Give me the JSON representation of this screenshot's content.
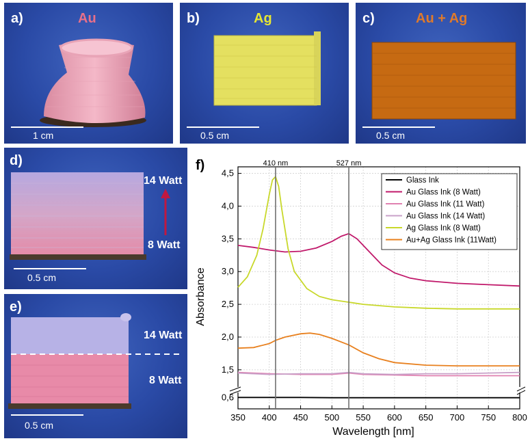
{
  "panels": {
    "a": {
      "label": "a)",
      "material": "Au",
      "material_color": "#e8708a",
      "scale": "1 cm"
    },
    "b": {
      "label": "b)",
      "material": "Ag",
      "material_color": "#e6e633",
      "scale": "0.5 cm"
    },
    "c": {
      "label": "c)",
      "material": "Au + Ag",
      "material_color": "#e07a2a",
      "scale": "0.5 cm"
    },
    "d": {
      "label": "d)",
      "top_watt": "14 Watt",
      "bottom_watt": "8 Watt",
      "scale": "0.5 cm"
    },
    "e": {
      "label": "e)",
      "top_watt": "14 Watt",
      "bottom_watt": "8 Watt",
      "scale": "0.5 cm"
    }
  },
  "chart_data": {
    "panel_label": "f)",
    "type": "line",
    "xlabel": "Wavelength [nm]",
    "ylabel": "Absorbance",
    "xlim": [
      350,
      800
    ],
    "xticks": [
      350,
      400,
      450,
      500,
      550,
      600,
      650,
      700,
      750,
      800
    ],
    "yticks": [
      0.6,
      1.5,
      2.0,
      2.5,
      3.0,
      3.5,
      4.0,
      4.5
    ],
    "ytick_labels": [
      "0,6",
      "1,5",
      "2,0",
      "2,5",
      "3,0",
      "3,5",
      "4,0",
      "4,5"
    ],
    "axis_break": "between 0.6 and 1.5",
    "vlines": [
      {
        "x": 410,
        "label": "410 nm"
      },
      {
        "x": 527,
        "label": "527 nm"
      }
    ],
    "series": [
      {
        "name": "Glass Ink",
        "color": "#000000",
        "x": [
          350,
          400,
          450,
          500,
          550,
          600,
          650,
          700,
          750,
          800
        ],
        "y": [
          0.6,
          0.6,
          0.6,
          0.59,
          0.59,
          0.59,
          0.59,
          0.59,
          0.59,
          0.59
        ]
      },
      {
        "name": "Au Glass Ink (8 Watt)",
        "color": "#c0186a",
        "x": [
          350,
          375,
          400,
          425,
          450,
          475,
          500,
          515,
          527,
          540,
          560,
          580,
          600,
          625,
          650,
          700,
          750,
          800
        ],
        "y": [
          3.4,
          3.37,
          3.33,
          3.3,
          3.31,
          3.36,
          3.46,
          3.54,
          3.58,
          3.5,
          3.3,
          3.1,
          2.98,
          2.9,
          2.86,
          2.82,
          2.8,
          2.78
        ]
      },
      {
        "name": "Au Glass Ink (11 Watt)",
        "color": "#e080b0",
        "x": [
          350,
          400,
          450,
          500,
          527,
          550,
          600,
          650,
          700,
          750,
          800
        ],
        "y": [
          1.46,
          1.44,
          1.43,
          1.43,
          1.45,
          1.43,
          1.42,
          1.41,
          1.41,
          1.41,
          1.41
        ]
      },
      {
        "name": "Au Glass Ink (14 Watt)",
        "color": "#c8a0c8",
        "x": [
          350,
          400,
          450,
          500,
          527,
          550,
          600,
          650,
          700,
          750,
          800
        ],
        "y": [
          1.45,
          1.43,
          1.44,
          1.44,
          1.46,
          1.44,
          1.43,
          1.44,
          1.44,
          1.45,
          1.46
        ]
      },
      {
        "name": "Ag Glass Ink (8 Watt)",
        "color": "#c8d82a",
        "x": [
          350,
          365,
          380,
          390,
          400,
          405,
          410,
          415,
          420,
          430,
          440,
          460,
          480,
          500,
          550,
          600,
          650,
          700,
          750,
          800
        ],
        "y": [
          2.76,
          2.92,
          3.25,
          3.65,
          4.18,
          4.4,
          4.45,
          4.3,
          3.95,
          3.35,
          3.0,
          2.74,
          2.62,
          2.57,
          2.5,
          2.46,
          2.44,
          2.43,
          2.43,
          2.43
        ]
      },
      {
        "name": "Au+Ag Glass Ink (11Watt)",
        "color": "#e8801e",
        "x": [
          350,
          375,
          400,
          410,
          425,
          450,
          465,
          480,
          500,
          527,
          550,
          575,
          600,
          650,
          700,
          750,
          800
        ],
        "y": [
          1.83,
          1.84,
          1.9,
          1.95,
          2.0,
          2.05,
          2.06,
          2.04,
          1.98,
          1.88,
          1.76,
          1.67,
          1.61,
          1.57,
          1.56,
          1.56,
          1.56
        ]
      }
    ]
  }
}
